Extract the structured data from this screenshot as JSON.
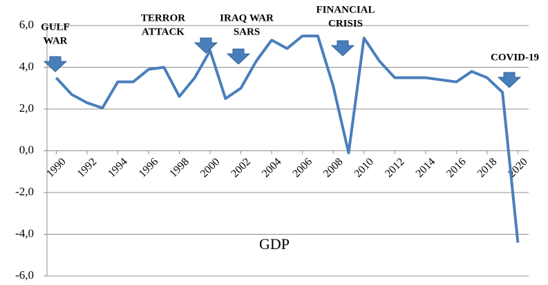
{
  "chart_data": {
    "type": "line",
    "x": [
      1990,
      1991,
      1992,
      1993,
      1994,
      1995,
      1996,
      1997,
      1998,
      1999,
      2000,
      2001,
      2002,
      2003,
      2004,
      2005,
      2006,
      2007,
      2008,
      2009,
      2010,
      2011,
      2012,
      2013,
      2014,
      2015,
      2016,
      2017,
      2018,
      2019,
      2020
    ],
    "series": [
      {
        "name": "GDP",
        "color": "#4a7ebb",
        "values": [
          3.5,
          2.7,
          2.3,
          2.05,
          3.3,
          3.3,
          3.9,
          4.0,
          2.6,
          3.5,
          4.8,
          2.5,
          3.0,
          4.3,
          5.3,
          4.9,
          5.5,
          5.5,
          3.1,
          -0.1,
          5.4,
          4.3,
          3.5,
          3.5,
          3.5,
          3.4,
          3.3,
          3.8,
          3.5,
          2.8,
          -4.4
        ]
      }
    ],
    "xlim": [
      1989.4,
      2020.7
    ],
    "xticks": [
      1990,
      1992,
      1994,
      1996,
      1998,
      2000,
      2002,
      2004,
      2006,
      2008,
      2010,
      2012,
      2014,
      2016,
      2018,
      2020
    ],
    "ylim": [
      -6,
      6
    ],
    "yticks": [
      {
        "value": -6,
        "label": "-6,0"
      },
      {
        "value": -4,
        "label": "-4,0"
      },
      {
        "value": -2,
        "label": "-2,0"
      },
      {
        "value": 0,
        "label": "0,0"
      },
      {
        "value": 2,
        "label": "2,0"
      },
      {
        "value": 4,
        "label": "4,0"
      },
      {
        "value": 6,
        "label": "6,0"
      }
    ],
    "grid": true,
    "annotations": [
      {
        "lines": [
          "GULF",
          "WAR"
        ]
      },
      {
        "lines": [
          "TERROR",
          "ATTACK"
        ]
      },
      {
        "lines": [
          "IRAQ WAR",
          "SARS"
        ]
      },
      {
        "lines": [
          "FINANCIAL",
          "CRISIS"
        ]
      },
      {
        "lines": [
          "COVID-19"
        ]
      }
    ]
  }
}
